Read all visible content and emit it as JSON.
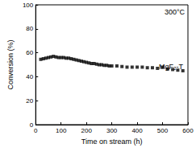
{
  "chart_data": {
    "type": "scatter",
    "x_label": "Time on stream (h)",
    "y_label": "Conversion (%)",
    "annotations": [
      "300°C",
      "MgF₂-T"
    ],
    "x": [
      20,
      30,
      40,
      50,
      60,
      70,
      80,
      90,
      100,
      110,
      120,
      130,
      140,
      150,
      160,
      170,
      180,
      190,
      200,
      210,
      220,
      230,
      240,
      250,
      260,
      270,
      280,
      290,
      300,
      320,
      340,
      360,
      380,
      400,
      420,
      440,
      460,
      480,
      500,
      520,
      540,
      560,
      580
    ],
    "values": [
      54.5,
      55,
      55.5,
      56,
      56.5,
      57,
      56.5,
      56,
      56,
      56,
      55.5,
      55.5,
      55,
      54.5,
      54,
      53.5,
      53,
      52.5,
      52,
      51.5,
      51,
      51,
      50.5,
      50,
      50,
      49.5,
      49.5,
      49,
      49,
      49,
      48.5,
      48,
      48,
      48,
      48,
      47.5,
      47.5,
      47,
      48,
      46.5,
      46,
      45.5,
      45
    ],
    "color": "#000000",
    "marker": "square",
    "xlim": [
      0,
      600
    ],
    "xticks": [
      0,
      100,
      200,
      300,
      400,
      500,
      600
    ],
    "ylim": [
      0,
      100
    ],
    "yticks": [
      0,
      20,
      40,
      60,
      80,
      100
    ],
    "grid": false
  }
}
